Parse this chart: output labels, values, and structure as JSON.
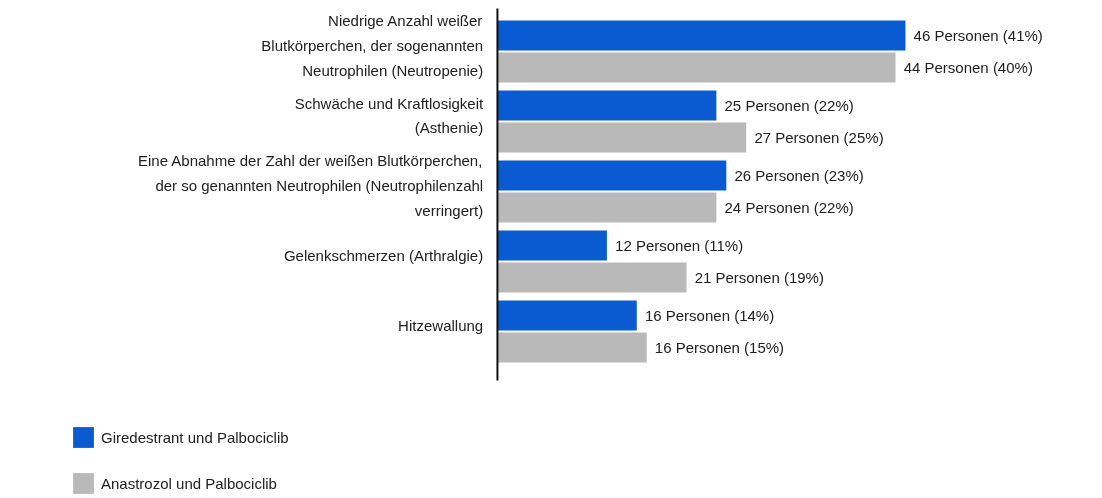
{
  "chart_data": {
    "type": "bar",
    "orientation": "horizontal",
    "categories": [
      "Niedrige Anzahl weißer\nBlutkörperchen, der sogenannten\nNeutrophilen (Neutropenie)",
      "Schwäche und Kraftlosigkeit\n(Asthenie)",
      "Eine Abnahme der Zahl der weißen Blutkörperchen,\nder so genannten Neutrophilen (Neutrophilenzahl\nverringert)",
      "Gelenkschmerzen (Arthralgie)",
      "Hitzewallung"
    ],
    "series": [
      {
        "name": "Giredestrant und Palbociclib",
        "color": "#0a5ad2",
        "values": [
          41,
          22,
          23,
          11,
          14
        ],
        "value_labels": [
          "46 Personen (41%)",
          "25 Personen (22%)",
          "26 Personen (23%)",
          "12 Personen (11%)",
          "16 Personen (14%)"
        ]
      },
      {
        "name": "Anastrozol und Palbociclib",
        "color": "#b9b9b9",
        "values": [
          40,
          25,
          22,
          19,
          15
        ],
        "value_labels": [
          "44 Personen (40%)",
          "27 Personen (25%)",
          "24 Personen (22%)",
          "21 Personen (19%)",
          "16 Personen (15%)"
        ]
      }
    ],
    "legend": "bottom left",
    "grid": false
  }
}
